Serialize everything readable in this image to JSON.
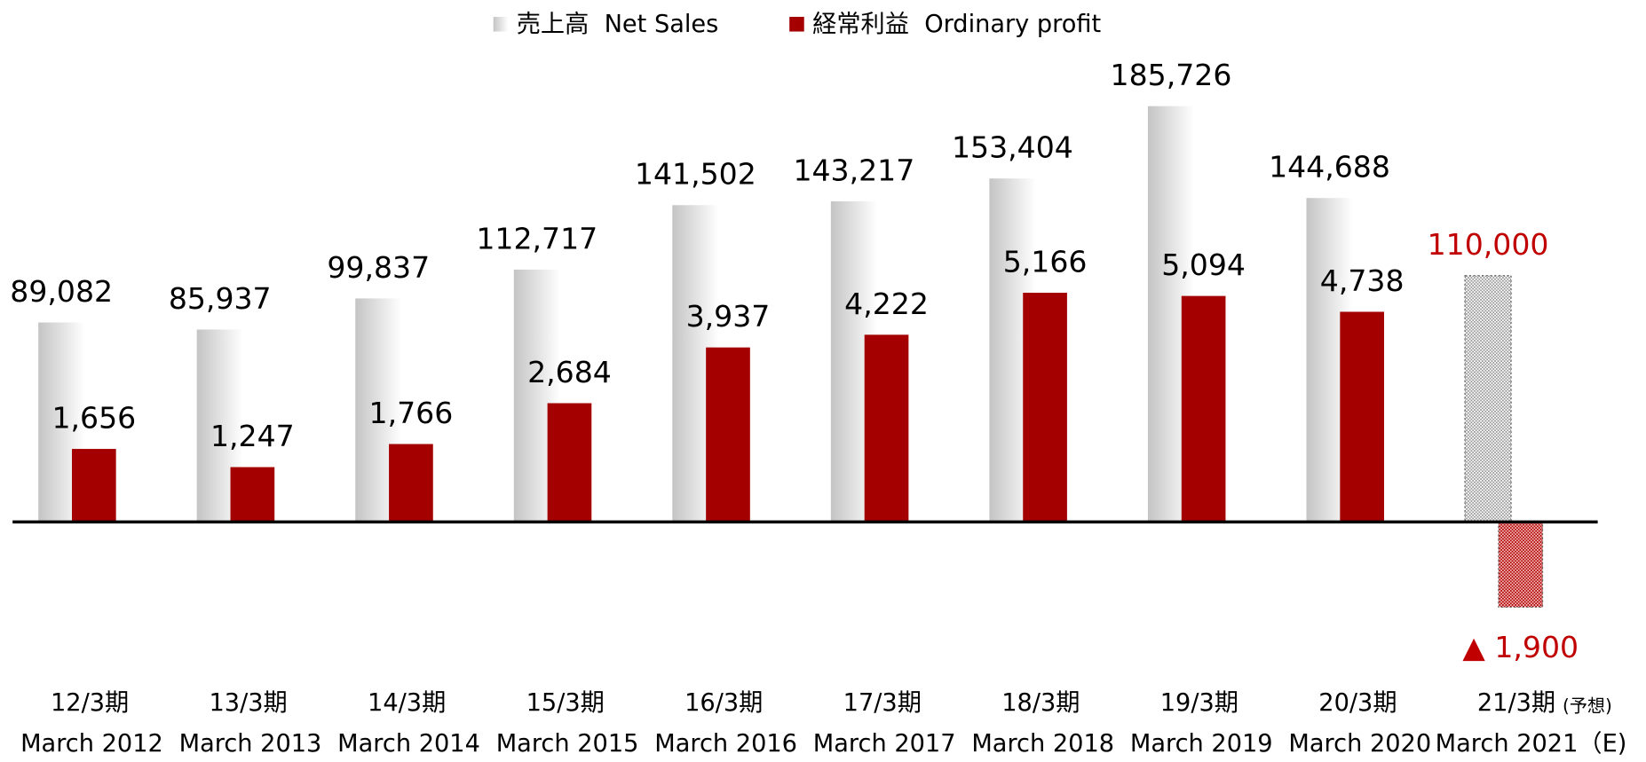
{
  "chart_data": {
    "type": "bar",
    "categories": [
      "12/3期",
      "13/3期",
      "14/3期",
      "15/3期",
      "16/3期",
      "17/3期",
      "18/3期",
      "19/3期",
      "20/3期",
      "21/3期"
    ],
    "subcategories": [
      "March 2012",
      "March 2013",
      "March 2014",
      "March 2015",
      "March 2016",
      "March 2017",
      "March 2018",
      "March 2019",
      "March 2020",
      "March 2021（E)"
    ],
    "category_note": "(予想)",
    "forecast_index": 9,
    "forecast_color": "#c00000",
    "ylim": [
      -48000,
      205000
    ],
    "y2lim": [
      -2400,
      10330
    ],
    "legend": "top",
    "series": [
      {
        "name": "売上高  Net Sales",
        "color": "#c4c4c4",
        "values": [
          89082,
          85937,
          99837,
          112717,
          141502,
          143217,
          153404,
          185726,
          144688,
          110000
        ],
        "value_labels": [
          "89,082",
          "85,937",
          "99,837",
          "112,717",
          "141,502",
          "143,217",
          "153,404",
          "185,726",
          "144,688",
          "110,000"
        ]
      },
      {
        "name": "経常利益  Ordinary profit",
        "color": "#a50000",
        "axis": "y2",
        "values": [
          1656,
          1247,
          1766,
          2684,
          3937,
          4222,
          5166,
          5094,
          4738,
          -1900
        ],
        "value_labels": [
          "1,656",
          "1,247",
          "1,766",
          "2,684",
          "3,937",
          "4,222",
          "5,166",
          "5,094",
          "4,738",
          "▲ 1,900"
        ]
      }
    ]
  }
}
